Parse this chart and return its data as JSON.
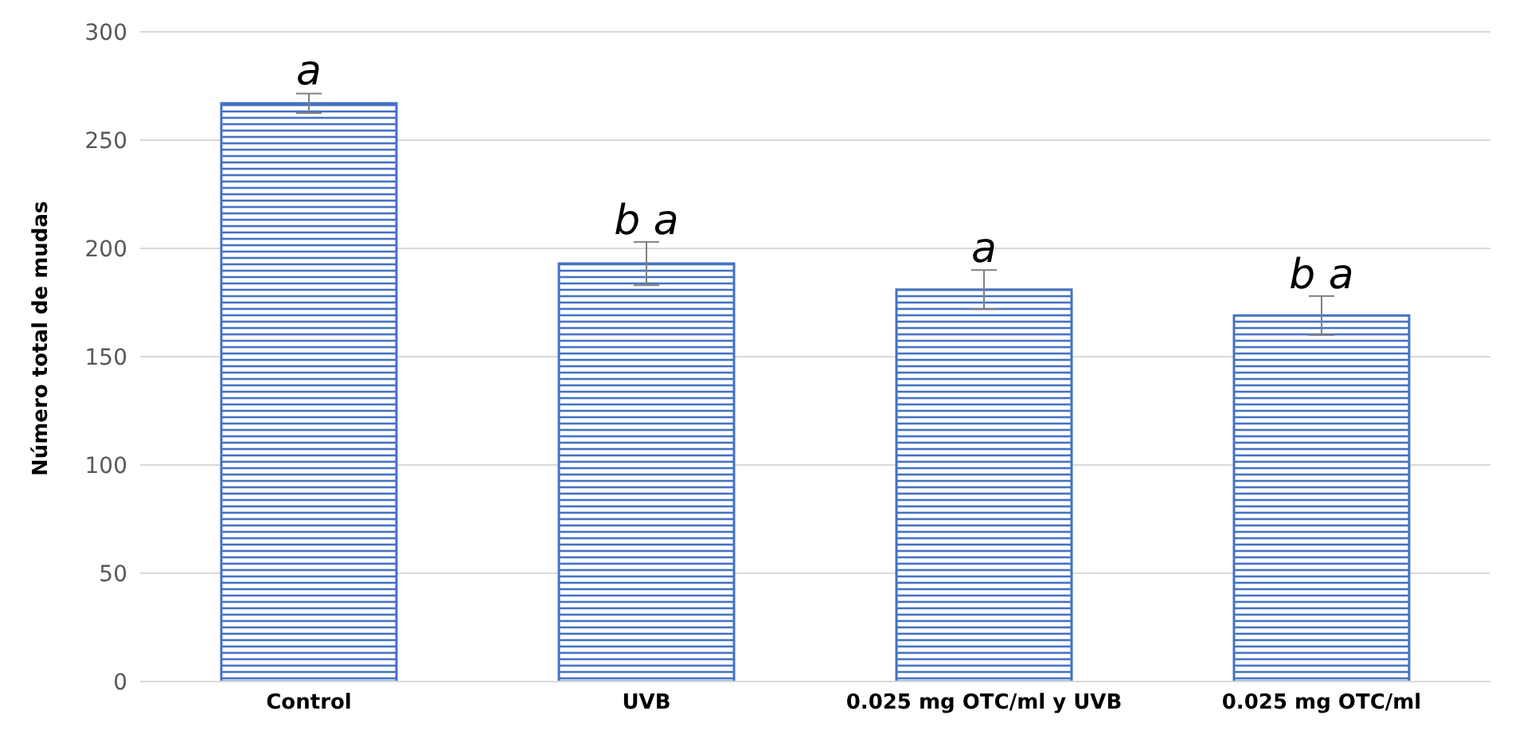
{
  "chart_data": {
    "type": "bar",
    "ylabel": "Número total de mudas",
    "categories": [
      "Control",
      "UVB",
      "0.025 mg OTC/ml y UVB",
      "0.025 mg OTC/ml"
    ],
    "values": [
      267,
      193,
      181,
      169
    ],
    "errors": [
      4.5,
      10,
      9,
      9
    ],
    "color": "#4472c4",
    "ylim": [
      0,
      300
    ],
    "yticks": [
      0,
      50,
      100,
      150,
      200,
      250,
      300
    ],
    "grid": "y",
    "annotations": [
      {
        "text": "a",
        "x": "Control",
        "y": 272
      },
      {
        "text": "b a",
        "x": "UVB",
        "y": 203
      },
      {
        "text": "a",
        "x": "0.025 mg OTC/ml y UVB",
        "y": 190
      },
      {
        "text": "b a",
        "x": "0.025 mg OTC/ml",
        "y": 178
      }
    ]
  }
}
